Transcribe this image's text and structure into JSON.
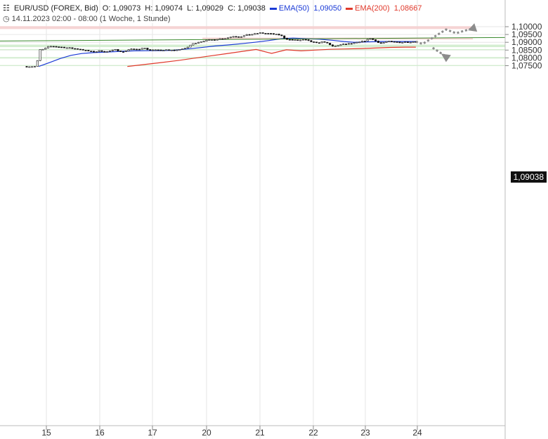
{
  "header": {
    "instrument": "EUR/USD (FOREX, Bid)",
    "open_label": "O:",
    "open": "1,09073",
    "high_label": "H:",
    "high": "1,09074",
    "low_label": "L:",
    "low": "1,09029",
    "close_label": "C:",
    "close": "1,09038",
    "ema50_label": "EMA(50)",
    "ema50_value": "1,09050",
    "ema200_label": "EMA(200)",
    "ema200_value": "1,08667",
    "date_range": "14.11.2023 02:00 - 08:00",
    "period": "(1 Woche, 1 Stunde)",
    "last_price": "1,09038"
  },
  "colors": {
    "ema50": "#1a3ad6",
    "ema200": "#e0392b",
    "trendline": "#3a8a2e",
    "resistance_zone": "#f4cccc",
    "support_zone": "#cfeccc",
    "candle": "#111111",
    "arrow": "#8c8c8c"
  },
  "chart_data": {
    "type": "candlestick",
    "y_ticks": [
      "1,10000",
      "1,09500",
      "1,09000",
      "1,08500",
      "1,08000",
      "1,07500"
    ],
    "y_tick_values": [
      1.1,
      1.095,
      1.09,
      1.085,
      1.08,
      1.075
    ],
    "x_ticks": [
      "15",
      "16",
      "17",
      "20",
      "21",
      "22",
      "23",
      "24"
    ],
    "ylim": [
      1.0745,
      1.1017
    ],
    "grid": true,
    "price_path": [
      [
        0,
        1.0745
      ],
      [
        1.8,
        1.0745
      ],
      [
        2.4,
        1.0852
      ],
      [
        3.0,
        1.0855
      ],
      [
        3.5,
        1.087
      ],
      [
        4.2,
        1.0875
      ],
      [
        5.2,
        1.087
      ],
      [
        6.2,
        1.0866
      ],
      [
        7.4,
        1.086
      ],
      [
        8.3,
        1.0856
      ],
      [
        9.1,
        1.0848
      ],
      [
        10.3,
        1.0838
      ],
      [
        11.3,
        1.0845
      ],
      [
        12.4,
        1.084
      ],
      [
        13.6,
        1.0852
      ],
      [
        14.8,
        1.0838
      ],
      [
        15.8,
        1.0858
      ],
      [
        17.1,
        1.0852
      ],
      [
        17.9,
        1.087
      ],
      [
        18.3,
        1.0852
      ],
      [
        19.3,
        1.085
      ],
      [
        20.1,
        1.0848
      ],
      [
        21.3,
        1.085
      ],
      [
        22.6,
        1.0848
      ],
      [
        23.2,
        1.0856
      ],
      [
        24.1,
        1.086
      ],
      [
        25.0,
        1.0888
      ],
      [
        26.0,
        1.0902
      ],
      [
        26.9,
        1.091
      ],
      [
        28.0,
        1.0916
      ],
      [
        29.1,
        1.0922
      ],
      [
        30.1,
        1.0926
      ],
      [
        31.3,
        1.094
      ],
      [
        32.1,
        1.0934
      ],
      [
        33.1,
        1.0946
      ],
      [
        34.2,
        1.0952
      ],
      [
        35.1,
        1.096
      ],
      [
        36.1,
        1.0957
      ],
      [
        37.1,
        1.0953
      ],
      [
        38.2,
        1.0946
      ],
      [
        39.0,
        1.0922
      ],
      [
        39.8,
        1.0915
      ],
      [
        40.9,
        1.0912
      ],
      [
        41.7,
        1.0917
      ],
      [
        42.6,
        1.0906
      ],
      [
        43.6,
        1.0895
      ],
      [
        44.7,
        1.0905
      ],
      [
        45.6,
        1.0882
      ],
      [
        46.1,
        1.0873
      ],
      [
        46.7,
        1.088
      ],
      [
        47.8,
        1.0888
      ],
      [
        48.8,
        1.0892
      ],
      [
        50.0,
        1.09
      ],
      [
        51.0,
        1.0912
      ],
      [
        51.6,
        1.0925
      ],
      [
        52.3,
        1.091
      ],
      [
        53.2,
        1.0893
      ],
      [
        54.1,
        1.0905
      ],
      [
        55.1,
        1.0902
      ],
      [
        56.2,
        1.09
      ],
      [
        57.2,
        1.0902
      ],
      [
        58.0,
        1.0904
      ]
    ],
    "ema50": [
      [
        1.8,
        1.0745
      ],
      [
        3.4,
        1.077
      ],
      [
        5.0,
        1.0796
      ],
      [
        6.6,
        1.0816
      ],
      [
        8.2,
        1.0828
      ],
      [
        9.9,
        1.0834
      ],
      [
        11.9,
        1.0837
      ],
      [
        14.0,
        1.0842
      ],
      [
        16.0,
        1.0845
      ],
      [
        18.0,
        1.0846
      ],
      [
        20.0,
        1.0847
      ],
      [
        22.0,
        1.0849
      ],
      [
        24.0,
        1.0857
      ],
      [
        26.0,
        1.0866
      ],
      [
        28.0,
        1.0876
      ],
      [
        30.0,
        1.0883
      ],
      [
        32.0,
        1.0891
      ],
      [
        34.0,
        1.09
      ],
      [
        36.0,
        1.0911
      ],
      [
        38.0,
        1.0923
      ],
      [
        39.7,
        1.0927
      ],
      [
        41.7,
        1.0923
      ],
      [
        43.6,
        1.092
      ],
      [
        45.5,
        1.0913
      ],
      [
        47.3,
        1.0905
      ],
      [
        48.8,
        1.09
      ],
      [
        50.4,
        1.0902
      ],
      [
        52.2,
        1.0905
      ],
      [
        54.2,
        1.0905
      ],
      [
        56.1,
        1.0905
      ],
      [
        58.0,
        1.0905
      ]
    ],
    "ema200": [
      [
        15.0,
        1.0745
      ],
      [
        17.5,
        1.0757
      ],
      [
        20.0,
        1.077
      ],
      [
        22.5,
        1.0783
      ],
      [
        25.0,
        1.0798
      ],
      [
        27.3,
        1.0812
      ],
      [
        29.6,
        1.0826
      ],
      [
        31.9,
        1.084
      ],
      [
        34.2,
        1.0854
      ],
      [
        36.5,
        1.0829
      ],
      [
        38.7,
        1.0852
      ],
      [
        40.9,
        1.0845
      ],
      [
        43.0,
        1.085
      ],
      [
        45.2,
        1.0855
      ],
      [
        47.4,
        1.0857
      ],
      [
        49.8,
        1.086
      ],
      [
        51.9,
        1.0863
      ],
      [
        54.2,
        1.0867
      ],
      [
        56.4,
        1.0869
      ],
      [
        58.0,
        1.0869
      ]
    ],
    "trendline": [
      [
        0,
        1.0908
      ],
      [
        66.5,
        1.0931
      ]
    ],
    "resistance_zones": [
      {
        "from": 1.0985,
        "to": 1.1003,
        "x0": 0,
        "x1": 66.5
      },
      {
        "from": 1.0918,
        "to": 1.093,
        "x0": 26.2,
        "x1": 66.5
      }
    ],
    "support_zones": [
      {
        "from": 1.0869,
        "to": 1.0885
      },
      {
        "from": 1.085,
        "to": 1.0856
      },
      {
        "from": 1.0796,
        "to": 1.0805
      },
      {
        "from": 1.0748,
        "to": 1.0754
      }
    ],
    "projection_up": [
      [
        58.0,
        1.0904
      ],
      [
        59.0,
        1.0889
      ],
      [
        62.5,
        1.0982
      ],
      [
        64.0,
        1.0958
      ],
      [
        66.2,
        1.0986
      ]
    ],
    "projection_down": [
      [
        60.5,
        1.0865
      ],
      [
        62.5,
        1.0809
      ]
    ]
  }
}
